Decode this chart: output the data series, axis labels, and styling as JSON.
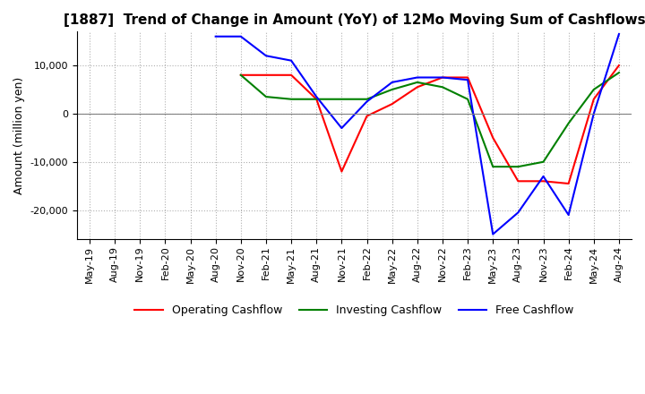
{
  "title": "[1887]  Trend of Change in Amount (YoY) of 12Mo Moving Sum of Cashflows",
  "ylabel": "Amount (million yen)",
  "ylim": [
    -26000,
    17000
  ],
  "yticks": [
    -20000,
    -10000,
    0,
    10000
  ],
  "legend_labels": [
    "Operating Cashflow",
    "Investing Cashflow",
    "Free Cashflow"
  ],
  "legend_colors": [
    "red",
    "green",
    "blue"
  ],
  "x_labels": [
    "May-19",
    "Aug-19",
    "Nov-19",
    "Feb-20",
    "May-20",
    "Aug-20",
    "Nov-20",
    "Feb-21",
    "May-21",
    "Aug-21",
    "Nov-21",
    "Feb-22",
    "May-22",
    "Aug-22",
    "Nov-22",
    "Feb-23",
    "May-23",
    "Aug-23",
    "Nov-23",
    "Feb-24",
    "May-24",
    "Aug-24"
  ],
  "operating": [
    null,
    null,
    null,
    null,
    null,
    null,
    8000,
    8000,
    8000,
    3000,
    -12000,
    -500,
    2000,
    5500,
    7500,
    7500,
    -5000,
    -14000,
    -14000,
    -14500,
    3000,
    10000
  ],
  "investing": [
    null,
    null,
    null,
    null,
    null,
    null,
    8000,
    3500,
    3000,
    3000,
    3000,
    3000,
    5000,
    6500,
    5500,
    3000,
    -11000,
    -11000,
    -10000,
    -2000,
    5000,
    8500
  ],
  "free": [
    null,
    null,
    null,
    null,
    null,
    16000,
    16000,
    12000,
    11000,
    3500,
    -3000,
    2500,
    6500,
    7500,
    7500,
    7000,
    -25000,
    -20500,
    -13000,
    -21000,
    0,
    16500
  ],
  "background_color": "#ffffff",
  "grid_color": "#b0b0b0",
  "title_fontsize": 11,
  "axis_fontsize": 9,
  "tick_fontsize": 8
}
